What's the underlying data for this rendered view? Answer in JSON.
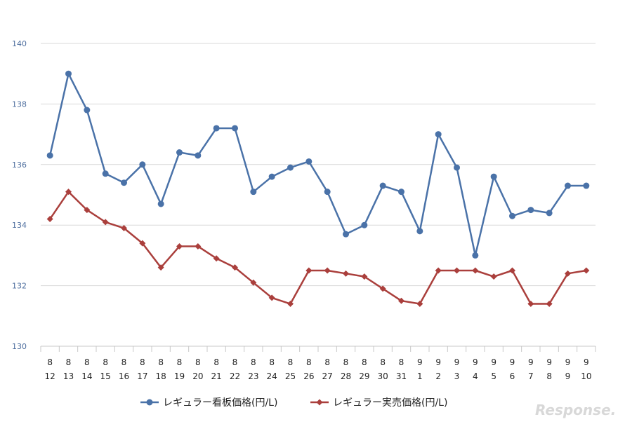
{
  "chart_data": {
    "type": "line",
    "categories": [
      [
        "8",
        "12"
      ],
      [
        "8",
        "13"
      ],
      [
        "8",
        "14"
      ],
      [
        "8",
        "15"
      ],
      [
        "8",
        "16"
      ],
      [
        "8",
        "17"
      ],
      [
        "8",
        "18"
      ],
      [
        "8",
        "19"
      ],
      [
        "8",
        "20"
      ],
      [
        "8",
        "21"
      ],
      [
        "8",
        "22"
      ],
      [
        "8",
        "23"
      ],
      [
        "8",
        "24"
      ],
      [
        "8",
        "25"
      ],
      [
        "8",
        "26"
      ],
      [
        "8",
        "27"
      ],
      [
        "8",
        "28"
      ],
      [
        "8",
        "29"
      ],
      [
        "8",
        "30"
      ],
      [
        "8",
        "31"
      ],
      [
        "9",
        "1"
      ],
      [
        "9",
        "2"
      ],
      [
        "9",
        "3"
      ],
      [
        "9",
        "4"
      ],
      [
        "9",
        "5"
      ],
      [
        "9",
        "6"
      ],
      [
        "9",
        "7"
      ],
      [
        "9",
        "8"
      ],
      [
        "9",
        "9"
      ],
      [
        "9",
        "10"
      ]
    ],
    "series": [
      {
        "name": "レギュラー看板価格(円/L)",
        "color": "#4a72a8",
        "marker": "circle",
        "values": [
          136.3,
          139.0,
          137.8,
          135.7,
          135.4,
          136.0,
          134.7,
          136.4,
          136.3,
          137.2,
          137.2,
          135.1,
          135.6,
          135.9,
          136.1,
          135.1,
          133.7,
          134.0,
          135.3,
          135.1,
          133.8,
          137.0,
          135.9,
          133.0,
          135.6,
          134.3,
          134.5,
          134.4,
          135.3,
          135.3
        ]
      },
      {
        "name": "レギュラー実売価格(円/L)",
        "color": "#aa3f3c",
        "marker": "diamond",
        "values": [
          134.2,
          135.1,
          134.5,
          134.1,
          133.9,
          133.4,
          132.6,
          133.3,
          133.3,
          132.9,
          132.6,
          132.1,
          131.6,
          131.4,
          132.5,
          132.5,
          132.4,
          132.3,
          131.9,
          131.5,
          131.4,
          132.5,
          132.5,
          132.5,
          132.3,
          132.5,
          131.4,
          131.4,
          132.4,
          132.5
        ]
      }
    ],
    "yticks": [
      130,
      132,
      134,
      136,
      138,
      140
    ],
    "ylim": [
      130,
      140
    ],
    "grid": true,
    "legend_position": "bottom"
  },
  "watermark": "Response."
}
